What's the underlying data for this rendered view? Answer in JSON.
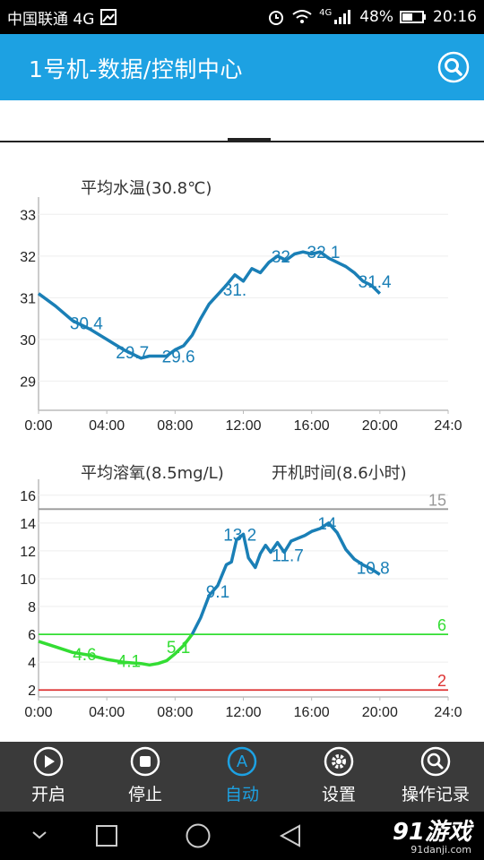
{
  "status": {
    "carrier": "中国联通 4G",
    "battery": "48%",
    "time": "20:16",
    "net": "4G"
  },
  "header": {
    "title": "1号机-数据/控制中心"
  },
  "temp_chart": {
    "title": "平均水温(30.8℃)",
    "color": "#1a7fb6",
    "chart_data": {
      "type": "line",
      "x_ticks": [
        "0:00",
        "04:00",
        "08:00",
        "12:00",
        "16:00",
        "20:00",
        "24:0"
      ],
      "y_ticks": [
        "29",
        "30",
        "31",
        "32",
        "33"
      ],
      "xlim": [
        0,
        24
      ],
      "ylim": [
        28.3,
        33.2
      ],
      "series": [
        {
          "x": [
            0,
            1,
            2,
            3,
            4,
            5,
            6,
            6.5,
            7,
            7.5,
            8,
            8.5,
            9,
            9.5,
            10,
            11,
            11.5,
            12,
            12.5,
            13,
            13.5,
            14,
            14.5,
            15,
            15.5,
            16,
            16.5,
            17,
            17.5,
            18,
            18.5,
            19,
            19.5,
            20
          ],
          "values": [
            31.1,
            30.8,
            30.45,
            30.25,
            30.0,
            29.75,
            29.55,
            29.6,
            29.6,
            29.6,
            29.75,
            29.85,
            30.1,
            30.5,
            30.85,
            31.3,
            31.55,
            31.4,
            31.7,
            31.6,
            31.85,
            32.0,
            31.9,
            32.05,
            32.1,
            32.05,
            32.1,
            31.95,
            31.85,
            31.75,
            31.6,
            31.4,
            31.3,
            31.1
          ]
        }
      ],
      "labels": [
        {
          "x": 2.8,
          "y": 30.4,
          "text": "30.4"
        },
        {
          "x": 5.5,
          "y": 29.7,
          "text": "29.7"
        },
        {
          "x": 8.2,
          "y": 29.6,
          "text": "29.6"
        },
        {
          "x": 11.5,
          "y": 31.2,
          "text": "31."
        },
        {
          "x": 14.2,
          "y": 32.0,
          "text": "32"
        },
        {
          "x": 16.7,
          "y": 32.1,
          "text": "32.1"
        },
        {
          "x": 19.7,
          "y": 31.4,
          "text": "31.4"
        }
      ]
    }
  },
  "do_chart": {
    "title_left": "平均溶氧(8.5mg/L)",
    "title_right": "开机时间(8.6小时)",
    "chart_data": {
      "type": "line",
      "x_ticks": [
        "0:00",
        "04:00",
        "08:00",
        "12:00",
        "16:00",
        "20:00",
        "24:0"
      ],
      "y_ticks": [
        "2",
        "4",
        "6",
        "8",
        "10",
        "12",
        "14",
        "16"
      ],
      "xlim": [
        0,
        24
      ],
      "ylim": [
        1.5,
        16.5
      ],
      "hlines": [
        {
          "y": 15,
          "label": "15",
          "color": "#999999"
        },
        {
          "y": 6,
          "label": "6",
          "color": "#33dd33"
        },
        {
          "y": 2,
          "label": "2",
          "color": "#dd3333"
        }
      ],
      "series": [
        {
          "name": "low",
          "color": "#33dd33",
          "x": [
            0,
            1,
            2,
            3,
            4,
            5,
            6,
            6.5,
            7,
            7.5,
            8,
            8.5,
            9
          ],
          "values": [
            5.5,
            5.1,
            4.7,
            4.5,
            4.2,
            4.0,
            3.9,
            3.8,
            3.9,
            4.1,
            4.6,
            5.2,
            6.0
          ]
        },
        {
          "name": "high",
          "color": "#1a7fb6",
          "x": [
            9,
            9.5,
            10,
            10.5,
            11,
            11.3,
            11.6,
            12,
            12.3,
            12.7,
            13,
            13.3,
            13.6,
            14,
            14.4,
            14.8,
            15.2,
            15.6,
            16,
            16.5,
            17,
            17.5,
            18,
            18.5,
            19,
            19.5,
            20
          ],
          "values": [
            6.0,
            7.2,
            8.8,
            9.5,
            11.0,
            11.2,
            12.8,
            13.2,
            11.5,
            10.8,
            11.8,
            12.4,
            11.9,
            12.6,
            11.9,
            12.7,
            12.9,
            13.1,
            13.4,
            13.6,
            14.0,
            13.3,
            12.1,
            11.4,
            11.0,
            10.7,
            10.3
          ]
        }
      ],
      "labels": [
        {
          "x": 2.7,
          "y": 4.6,
          "text": "4.6",
          "color": "#33dd33"
        },
        {
          "x": 5.3,
          "y": 4.1,
          "text": "4.1",
          "color": "#33dd33"
        },
        {
          "x": 8.2,
          "y": 5.1,
          "text": "5.1",
          "color": "#33dd33"
        },
        {
          "x": 10.5,
          "y": 9.1,
          "text": "9.1",
          "color": "#1a7fb6"
        },
        {
          "x": 11.8,
          "y": 13.2,
          "text": "13.2",
          "color": "#1a7fb6"
        },
        {
          "x": 14.6,
          "y": 11.7,
          "text": "11.7",
          "color": "#1a7fb6"
        },
        {
          "x": 16.9,
          "y": 14.0,
          "text": "14",
          "color": "#1a7fb6"
        },
        {
          "x": 19.6,
          "y": 10.8,
          "text": "10.8",
          "color": "#1a7fb6"
        }
      ]
    }
  },
  "nav": [
    {
      "label": "开启",
      "icon": "play-icon"
    },
    {
      "label": "停止",
      "icon": "stop-icon"
    },
    {
      "label": "自动",
      "icon": "auto-icon"
    },
    {
      "label": "设置",
      "icon": "gear-icon"
    },
    {
      "label": "操作记录",
      "icon": "search-icon"
    }
  ],
  "brand": {
    "logo": "91游戏",
    "site": "91danji.com"
  }
}
